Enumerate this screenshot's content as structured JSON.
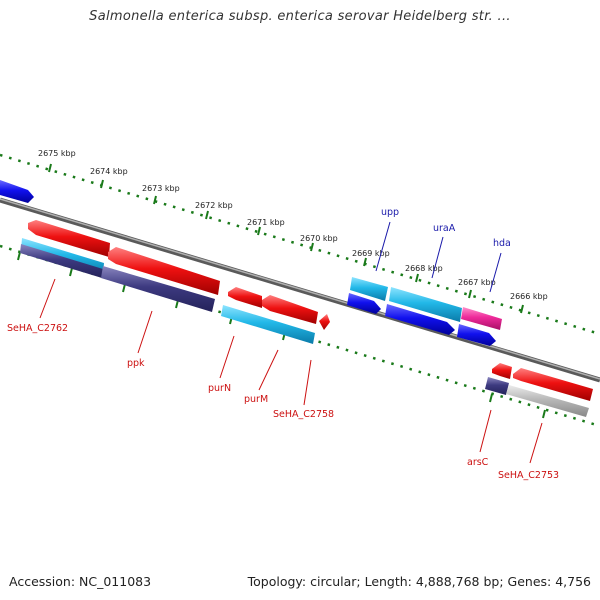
{
  "title": "Salmonella enterica subsp. enterica serovar Heidelberg str. ...",
  "footer": {
    "accession": "Accession: NC_011083",
    "topology": "Topology: circular; Length: 4,888,768 bp; Genes: 4,756"
  },
  "ruler_ticks": [
    "2675 kbp",
    "2674 kbp",
    "2673 kbp",
    "2672 kbp",
    "2671 kbp",
    "2670 kbp",
    "2669 kbp",
    "2668 kbp",
    "2667 kbp",
    "2666 kbp"
  ],
  "gene_labels": {
    "SeHA_C2762": "SeHA_C2762",
    "ppk": "ppk",
    "purN": "purN",
    "purM": "purM",
    "SeHA_C2758": "SeHA_C2758",
    "upp": "upp",
    "uraA": "uraA",
    "hda": "hda",
    "arsC": "arsC",
    "SeHA_C2753": "SeHA_C2753"
  },
  "colors": {
    "forward_cds": "#ee1111",
    "reverse_cds": "#1111ee",
    "cyan_feature": "#22b8e8",
    "navy_feature": "#3d3a80",
    "magenta_feature": "#ee2a9a",
    "grey_feature": "#b8b8b8",
    "backbone": "#777777",
    "tick_green": "#1a7a1a",
    "label_red": "#cc1111",
    "label_blue": "#1a1aaa"
  }
}
